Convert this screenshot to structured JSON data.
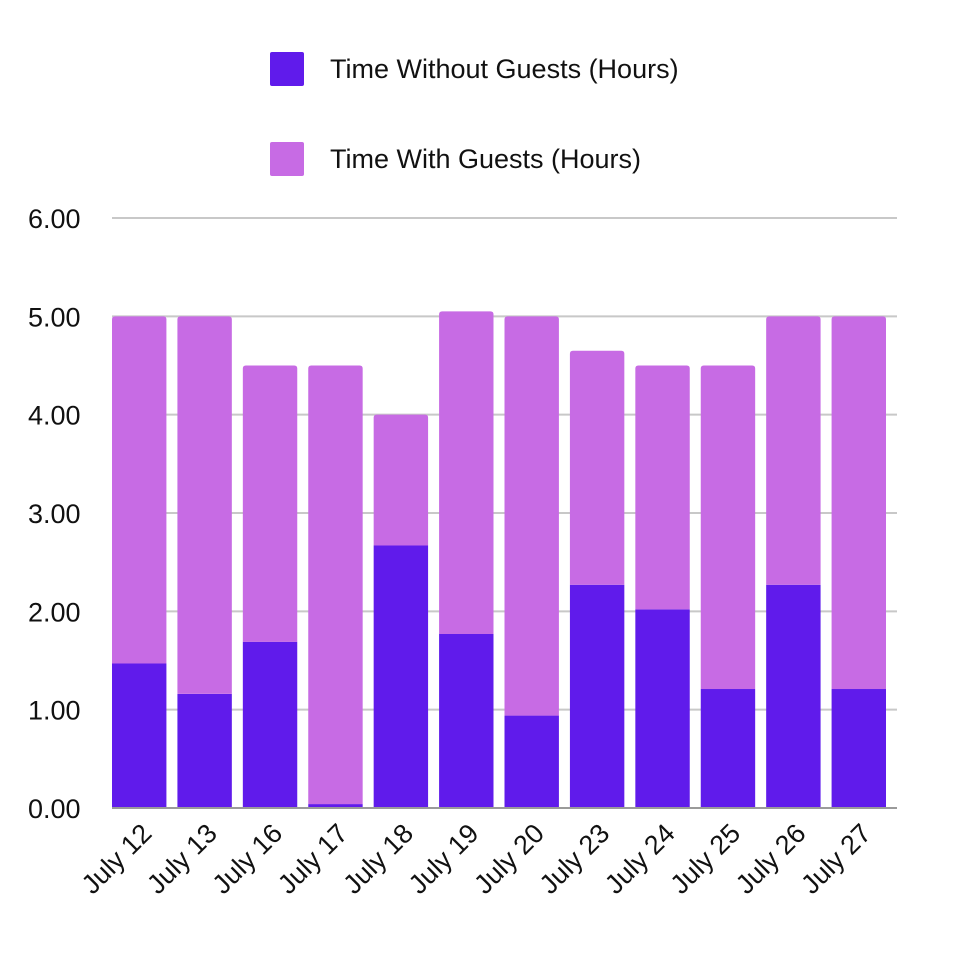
{
  "chart_data": {
    "type": "bar",
    "stacked": true,
    "categories": [
      "July 12",
      "July 13",
      "July 16",
      "July 17",
      "July 18",
      "July 19",
      "July 20",
      "July 23",
      "July 24",
      "July 25",
      "July 26",
      "July 27"
    ],
    "series": [
      {
        "name": "Time Without Guests (Hours)",
        "color": "#601BEB",
        "values": [
          1.47,
          1.16,
          1.69,
          0.04,
          2.67,
          1.77,
          0.94,
          2.27,
          2.02,
          1.21,
          2.27,
          1.21
        ]
      },
      {
        "name": "Time With Guests (Hours)",
        "color": "#C76BE4",
        "values": [
          3.53,
          3.84,
          2.81,
          4.46,
          1.33,
          3.28,
          4.06,
          2.38,
          2.48,
          3.29,
          2.73,
          3.79
        ]
      }
    ],
    "yticks": [
      "0.00",
      "1.00",
      "2.00",
      "3.00",
      "4.00",
      "5.00",
      "6.00"
    ],
    "ylim": [
      0,
      6
    ],
    "grid": true,
    "legend_position": "top"
  }
}
